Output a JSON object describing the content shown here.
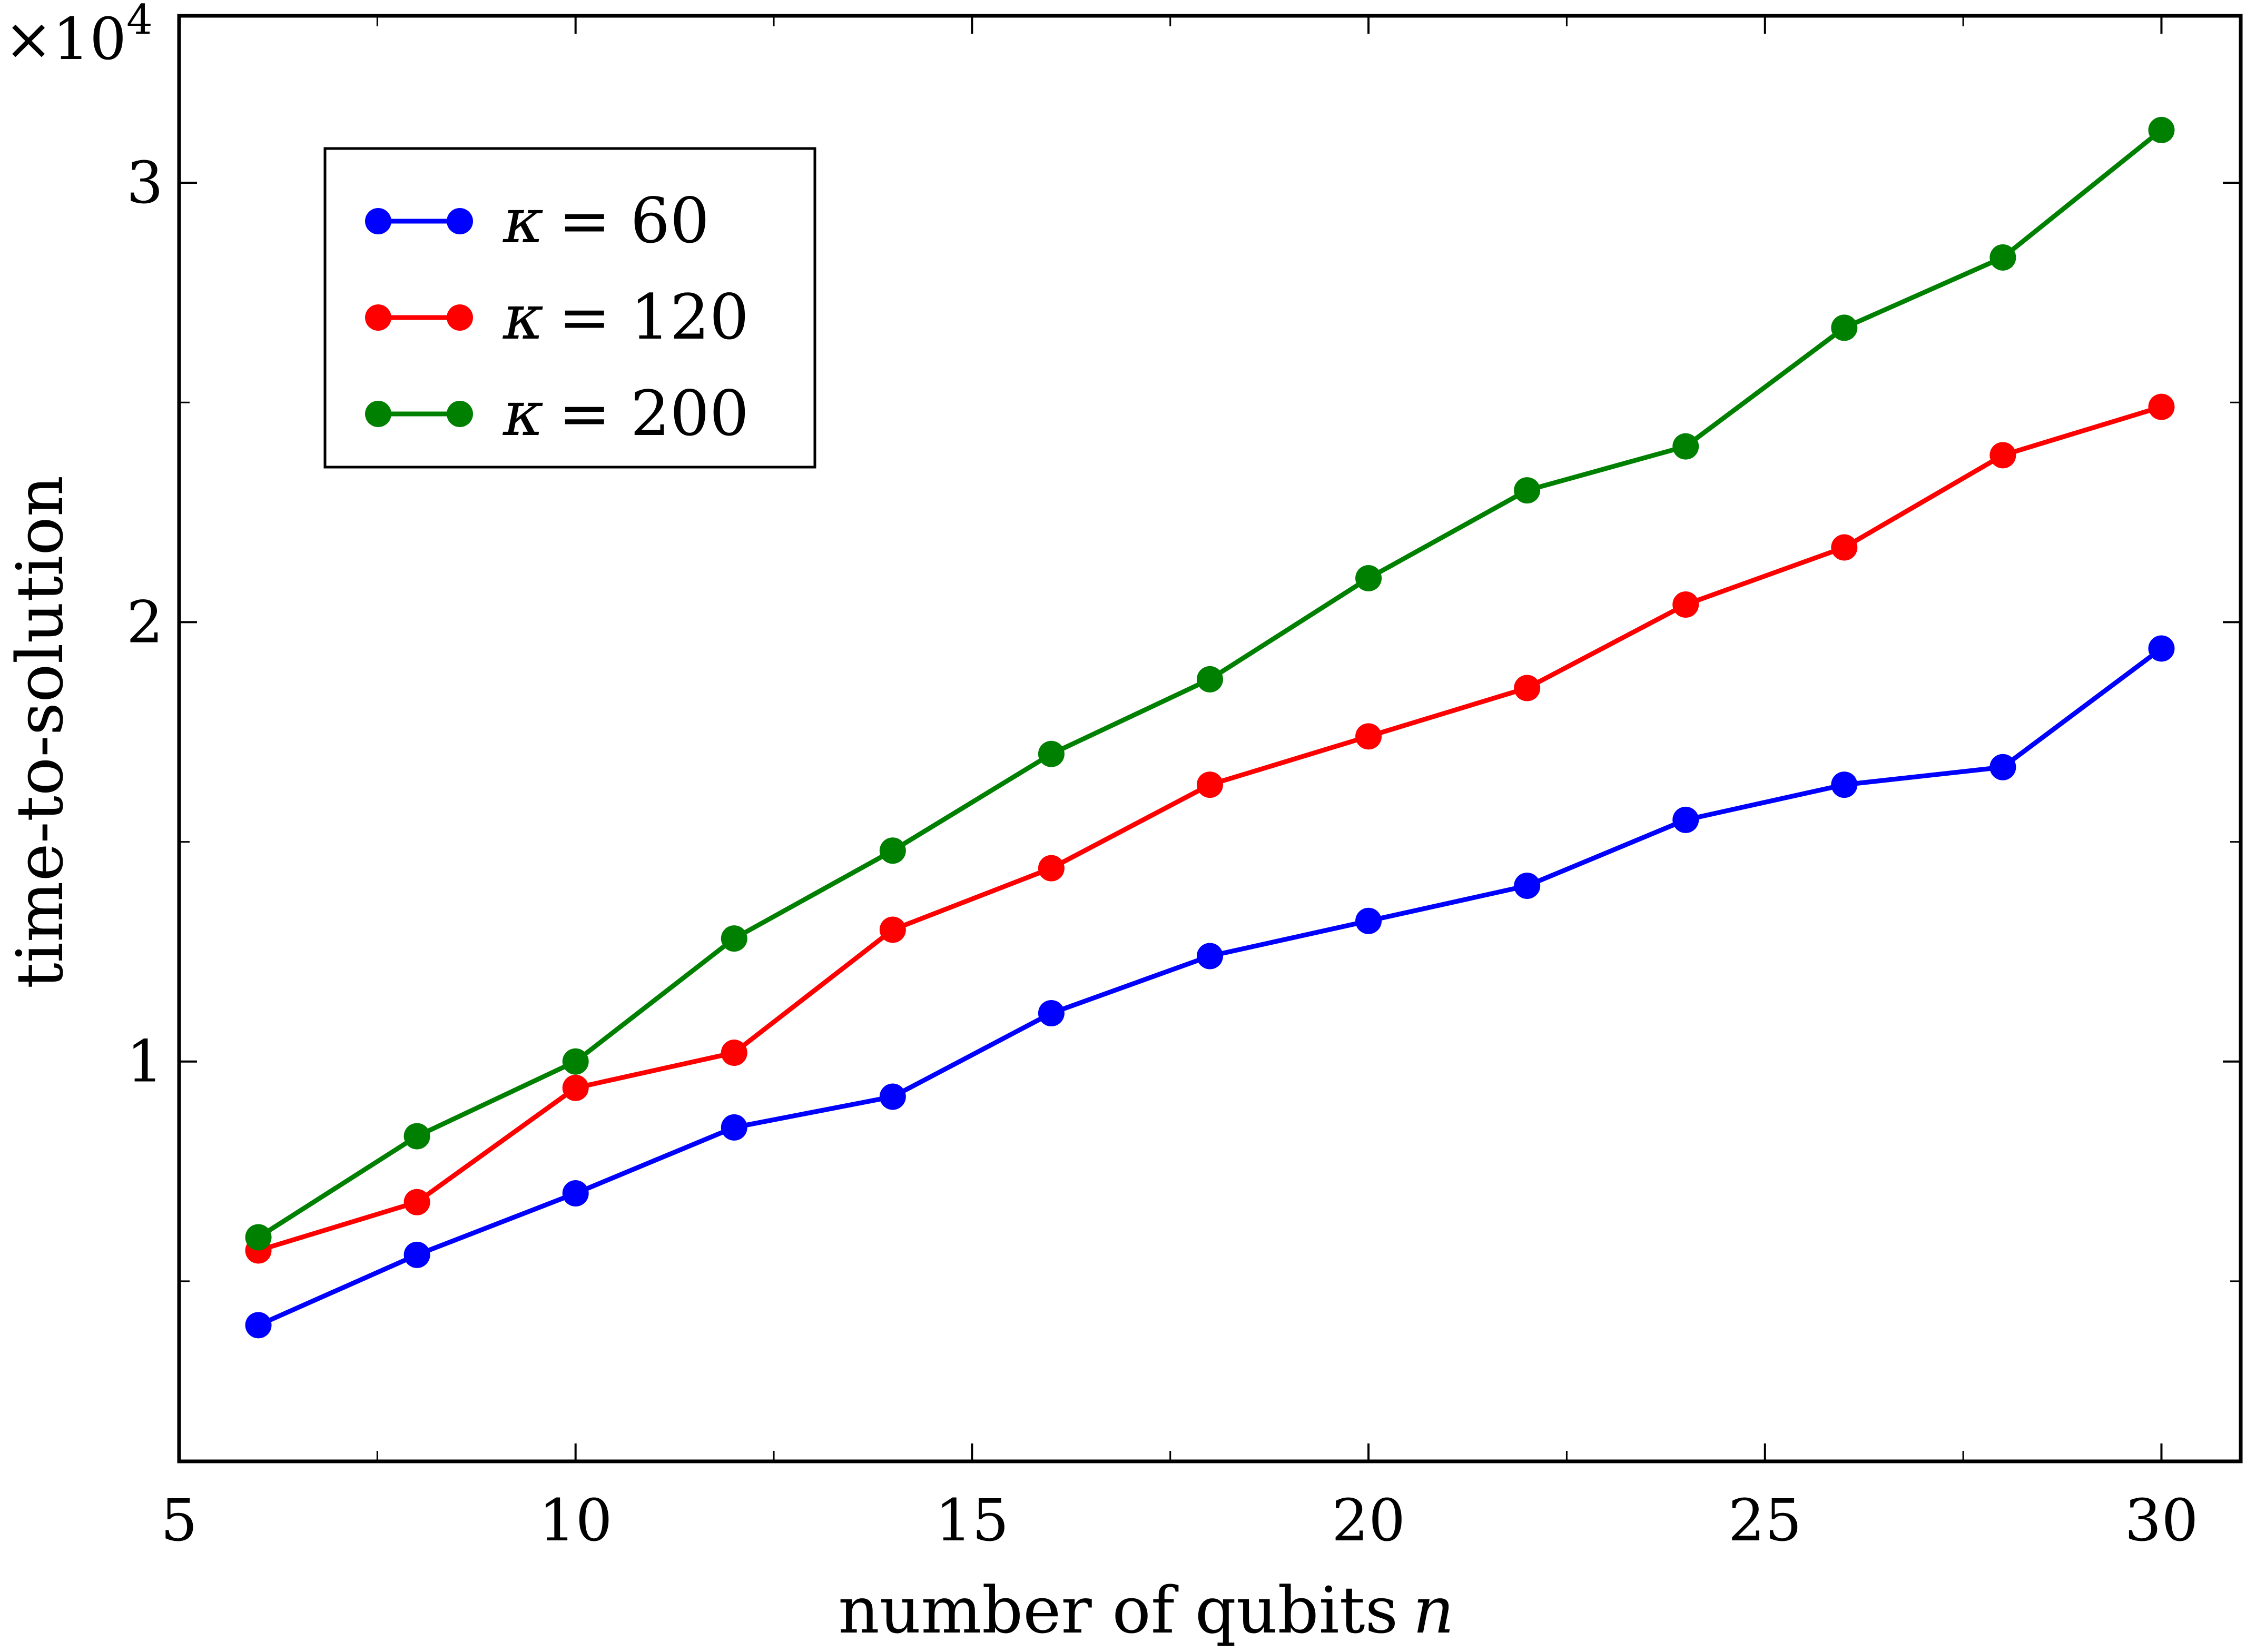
{
  "chart_data": {
    "type": "line",
    "title": "",
    "xlabel": "number of qubits",
    "xlabel_var": "n",
    "ylabel": "time-to-solution",
    "y_multiplier_base": "×10",
    "y_multiplier_exp": "4",
    "xlim": [
      5,
      31
    ],
    "ylim": [
      0.09,
      3.38
    ],
    "x_ticks": [
      5,
      10,
      15,
      20,
      25,
      30
    ],
    "x_ticklabels": [
      "5",
      "10",
      "15",
      "20",
      "25",
      "30"
    ],
    "y_ticks": [
      1,
      2,
      3
    ],
    "y_ticklabels": [
      "1",
      "2",
      "3"
    ],
    "grid": false,
    "legend_position": "top-left",
    "x": [
      6,
      8,
      10,
      12,
      14,
      16,
      18,
      20,
      22,
      24,
      26,
      28,
      30
    ],
    "series": [
      {
        "name": "κ = 60",
        "legend_symbol": "κ",
        "legend_value": "= 60",
        "color": "#0000ff",
        "values": [
          0.4,
          0.56,
          0.7,
          0.85,
          0.92,
          1.11,
          1.24,
          1.32,
          1.4,
          1.55,
          1.63,
          1.67,
          1.94
        ]
      },
      {
        "name": "κ = 120",
        "legend_symbol": "κ",
        "legend_value": "= 120",
        "color": "#ff0000",
        "values": [
          0.57,
          0.68,
          0.94,
          1.02,
          1.3,
          1.44,
          1.63,
          1.74,
          1.85,
          2.04,
          2.17,
          2.38,
          2.49
        ]
      },
      {
        "name": "κ = 200",
        "legend_symbol": "κ",
        "legend_value": "= 200",
        "color": "#008000",
        "values": [
          0.6,
          0.83,
          1.0,
          1.28,
          1.48,
          1.7,
          1.87,
          2.1,
          2.3,
          2.4,
          2.67,
          2.83,
          3.12
        ]
      }
    ]
  }
}
